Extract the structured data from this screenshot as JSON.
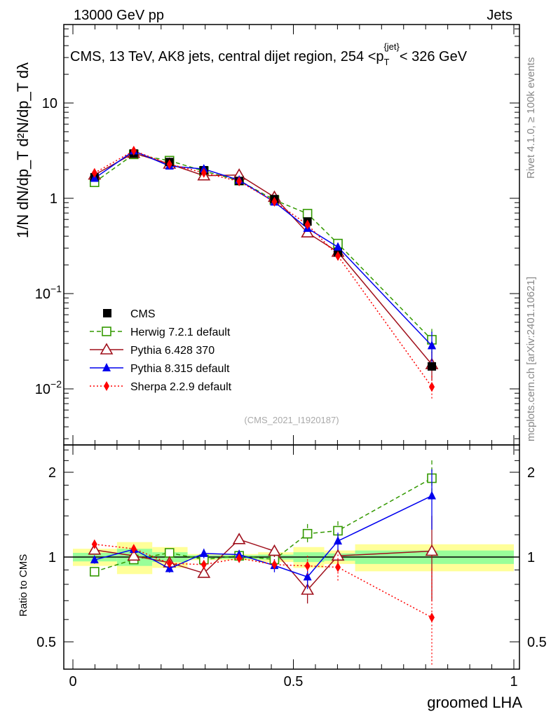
{
  "chart_data": [
    {
      "type": "line",
      "panel": "main",
      "header_left": "13000 GeV pp",
      "header_right": "Jets",
      "title": "CMS, 13 TeV, AK8 jets, central dijet region, 254 <p",
      "title_sub": "T",
      "title_sup": "{jet}",
      "title_end": "< 326 GeV",
      "ylabel": "1/N dN/dp_T d²N/dp_T dλ",
      "xlabel": "groomed LHA",
      "yscale": "log",
      "ylim": [
        0.00257,
        66
      ],
      "xlim": [
        -0.02,
        1.02
      ],
      "yticks": [
        {
          "v": 10,
          "label": "10",
          "sup": ""
        },
        {
          "v": 1,
          "label": "1",
          "sup": ""
        },
        {
          "v": 0.1,
          "label": "10",
          "sup": "−1"
        },
        {
          "v": 0.01,
          "label": "10",
          "sup": "−2"
        }
      ],
      "x": [
        0.049,
        0.138,
        0.219,
        0.297,
        0.377,
        0.457,
        0.532,
        0.601,
        0.814
      ],
      "bin_edges": [
        0,
        0.1,
        0.18,
        0.26,
        0.34,
        0.42,
        0.5,
        0.57,
        0.64,
        1.0
      ],
      "cms": [
        1.66,
        2.95,
        2.4,
        1.97,
        1.52,
        0.98,
        0.57,
        0.27,
        0.0172
      ],
      "watermark": "(CMS_2021_I1920187)",
      "side_text_top": "Rivet 4.1.0, ≥ 100k events",
      "side_text_bottom": "mcplots.cern.ch [arXiv:2401.10621]",
      "legend_placement": "lower-left",
      "legend": [
        "CMS",
        "Herwig 7.2.1 default",
        "Pythia 6.428 370",
        "Pythia 8.315 default",
        "Sherpa 2.2.9 default"
      ]
    },
    {
      "type": "line",
      "panel": "ratio",
      "ylabel": "Ratio to CMS",
      "yscale": "log",
      "ylim": [
        0.4,
        2.5
      ],
      "yticks": [
        {
          "v": 2,
          "label": "2"
        },
        {
          "v": 1,
          "label": "1"
        },
        {
          "v": 0.5,
          "label": "0.5"
        }
      ],
      "xticks": [
        {
          "v": 0,
          "label": "0"
        },
        {
          "v": 0.5,
          "label": "0.5"
        },
        {
          "v": 1,
          "label": "1"
        }
      ],
      "stat_band": [
        0.035,
        0.07,
        0.04,
        0.015,
        0.015,
        0.02,
        0.04,
        0.03,
        0.055
      ],
      "total_band": [
        0.07,
        0.13,
        0.085,
        0.025,
        0.025,
        0.04,
        0.085,
        0.055,
        0.11
      ],
      "series": [
        {
          "name": "Herwig 7.2.1 default",
          "color": "#339900",
          "dash": "6,4",
          "marker": "open-square",
          "ratio": [
            0.887,
            0.98,
            1.035,
            0.98,
            1.01,
            0.98,
            1.21,
            1.24,
            1.905
          ],
          "err": [
            0.03,
            0.03,
            0.03,
            0.02,
            0.02,
            0.03,
            0.1,
            0.1,
            0.3
          ]
        },
        {
          "name": "Pythia 6.428 370",
          "color": "#a0101c",
          "dash": "",
          "marker": "open-triangle",
          "ratio": [
            1.06,
            1.01,
            0.955,
            0.877,
            1.155,
            1.05,
            0.764,
            1.01,
            1.05
          ],
          "err": [
            0.03,
            0.03,
            0.03,
            0.03,
            0.04,
            0.05,
            0.08,
            0.06,
            0.35
          ]
        },
        {
          "name": "Pythia 8.315 default",
          "color": "#0000ee",
          "dash": "",
          "marker": "filled-triangle",
          "ratio": [
            0.977,
            1.065,
            0.91,
            1.03,
            1.02,
            0.933,
            0.85,
            1.14,
            1.65
          ],
          "err": [
            0.03,
            0.03,
            0.03,
            0.04,
            0.04,
            0.05,
            0.08,
            0.08,
            0.4
          ]
        },
        {
          "name": "Sherpa 2.2.9 default",
          "color": "#ff0000",
          "dash": "2,3",
          "marker": "filled-diamond",
          "ratio": [
            1.11,
            1.07,
            0.95,
            0.94,
            0.99,
            0.94,
            0.93,
            0.92,
            0.61
          ],
          "err": [
            0.04,
            0.03,
            0.03,
            0.03,
            0.03,
            0.04,
            0.08,
            0.1,
            0.3
          ]
        }
      ]
    }
  ]
}
